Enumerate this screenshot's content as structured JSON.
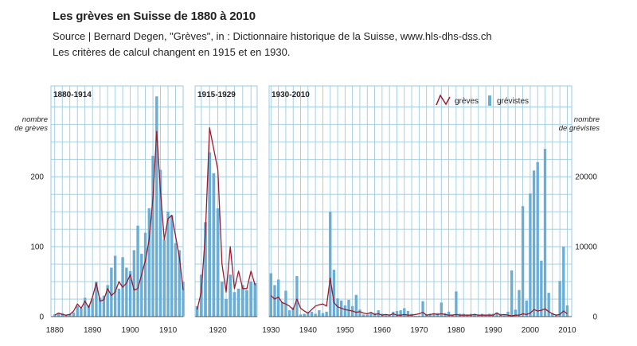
{
  "title": "Les grèves en Suisse de 1880 à 2010",
  "source": "Source | Bernard Degen, \"Grèves\", in : Dictionnaire historique de la Suisse, www.hls-dhs-dss.ch",
  "note": "Les critères de calcul changent en 1915 et en 1930.",
  "colors": {
    "bars": "#6aaed6",
    "line": "#9b1b2e",
    "grid": "#9ecae1"
  },
  "chart_data": {
    "type": "bar",
    "grid": true,
    "legend_placement": "top-right",
    "left_axis": {
      "label_line1": "nombre",
      "label_line2": "de grèves",
      "ticks": [
        0,
        100,
        200
      ],
      "ylim": [
        0,
        330
      ]
    },
    "right_axis": {
      "label_line1": "nombre",
      "label_line2": "de grévistes",
      "ticks": [
        0,
        10000,
        20000
      ],
      "ylim": [
        0,
        33000
      ]
    },
    "legend": {
      "line_label": "grèves",
      "bar_label": "grévistes"
    },
    "panels": [
      {
        "label": "1880-1914",
        "xlim": [
          1880,
          1914
        ],
        "x_ticks": [
          1880,
          1890,
          1900,
          1910
        ],
        "years": [
          1880,
          1881,
          1882,
          1883,
          1884,
          1885,
          1886,
          1887,
          1888,
          1889,
          1890,
          1891,
          1892,
          1893,
          1894,
          1895,
          1896,
          1897,
          1898,
          1899,
          1900,
          1901,
          1902,
          1903,
          1904,
          1905,
          1906,
          1907,
          1908,
          1909,
          1910,
          1911,
          1912,
          1913,
          1914
        ],
        "strikes": [
          2,
          5,
          3,
          2,
          3,
          8,
          18,
          12,
          22,
          13,
          28,
          48,
          22,
          24,
          40,
          30,
          35,
          50,
          42,
          48,
          60,
          38,
          40,
          60,
          80,
          110,
          170,
          265,
          180,
          110,
          140,
          145,
          115,
          85,
          38
        ],
        "strikers": [
          300,
          400,
          500,
          200,
          400,
          600,
          1500,
          1200,
          2700,
          1600,
          2600,
          5000,
          2700,
          3000,
          4500,
          7000,
          8700,
          4000,
          8500,
          7000,
          6500,
          9500,
          13000,
          9000,
          12000,
          15500,
          23000,
          31500,
          21000,
          11000,
          15000,
          14500,
          10500,
          9500,
          5000
        ]
      },
      {
        "label": "1915-1929",
        "xlim": [
          1915,
          1929
        ],
        "x_ticks": [
          1920
        ],
        "years": [
          1915,
          1916,
          1917,
          1918,
          1919,
          1920,
          1921,
          1922,
          1923,
          1924,
          1925,
          1926,
          1927,
          1928,
          1929
        ],
        "strikes": [
          10,
          35,
          120,
          270,
          240,
          210,
          75,
          35,
          100,
          40,
          65,
          40,
          40,
          65,
          45
        ],
        "strikers": [
          1500,
          6000,
          13500,
          23500,
          20500,
          15500,
          5000,
          2500,
          6000,
          3500,
          4000,
          4500,
          3800,
          5000,
          4800
        ]
      },
      {
        "label": "1930-2010",
        "xlim": [
          1930,
          2010
        ],
        "x_ticks": [
          1930,
          1940,
          1950,
          1960,
          1970,
          1980,
          1990,
          2000,
          2010
        ],
        "years": [
          1930,
          1931,
          1932,
          1933,
          1934,
          1935,
          1936,
          1937,
          1938,
          1939,
          1940,
          1941,
          1942,
          1943,
          1944,
          1945,
          1946,
          1947,
          1948,
          1949,
          1950,
          1951,
          1952,
          1953,
          1954,
          1955,
          1956,
          1957,
          1958,
          1959,
          1960,
          1961,
          1962,
          1963,
          1964,
          1965,
          1966,
          1967,
          1968,
          1969,
          1970,
          1971,
          1972,
          1973,
          1974,
          1975,
          1976,
          1977,
          1978,
          1979,
          1980,
          1981,
          1982,
          1983,
          1984,
          1985,
          1986,
          1987,
          1988,
          1989,
          1990,
          1991,
          1992,
          1993,
          1994,
          1995,
          1996,
          1997,
          1998,
          1999,
          2000,
          2001,
          2002,
          2003,
          2004,
          2005,
          2006,
          2007,
          2008,
          2009,
          2010
        ],
        "strikes": [
          30,
          25,
          28,
          20,
          18,
          15,
          10,
          25,
          12,
          8,
          5,
          10,
          15,
          17,
          18,
          15,
          55,
          20,
          14,
          12,
          10,
          9,
          8,
          6,
          7,
          5,
          4,
          6,
          3,
          4,
          2,
          3,
          2,
          4,
          2,
          2,
          3,
          2,
          2,
          3,
          4,
          6,
          2,
          3,
          4,
          3,
          4,
          3,
          2,
          2,
          3,
          2,
          2,
          2,
          2,
          3,
          2,
          2,
          2,
          2,
          2,
          5,
          2,
          3,
          2,
          1,
          2,
          2,
          4,
          3,
          5,
          10,
          8,
          9,
          11,
          7,
          4,
          2,
          3,
          8,
          4
        ],
        "strikers": [
          6200,
          4500,
          5300,
          2100,
          3700,
          900,
          1300,
          5800,
          300,
          400,
          600,
          700,
          400,
          900,
          500,
          700,
          15000,
          6700,
          2600,
          2300,
          1600,
          2400,
          1500,
          3100,
          1000,
          300,
          300,
          500,
          500,
          900,
          400,
          200,
          200,
          700,
          800,
          900,
          1200,
          800,
          400,
          100,
          100,
          2200,
          300,
          400,
          500,
          500,
          2000,
          500,
          700,
          300,
          3600,
          400,
          400,
          300,
          400,
          400,
          300,
          400,
          300,
          400,
          400,
          600,
          400,
          200,
          700,
          6600,
          1000,
          3800,
          15800,
          2300,
          17600,
          20900,
          22100,
          8000,
          24000,
          3400,
          500,
          300,
          5100,
          10000,
          1600
        ]
      }
    ]
  }
}
